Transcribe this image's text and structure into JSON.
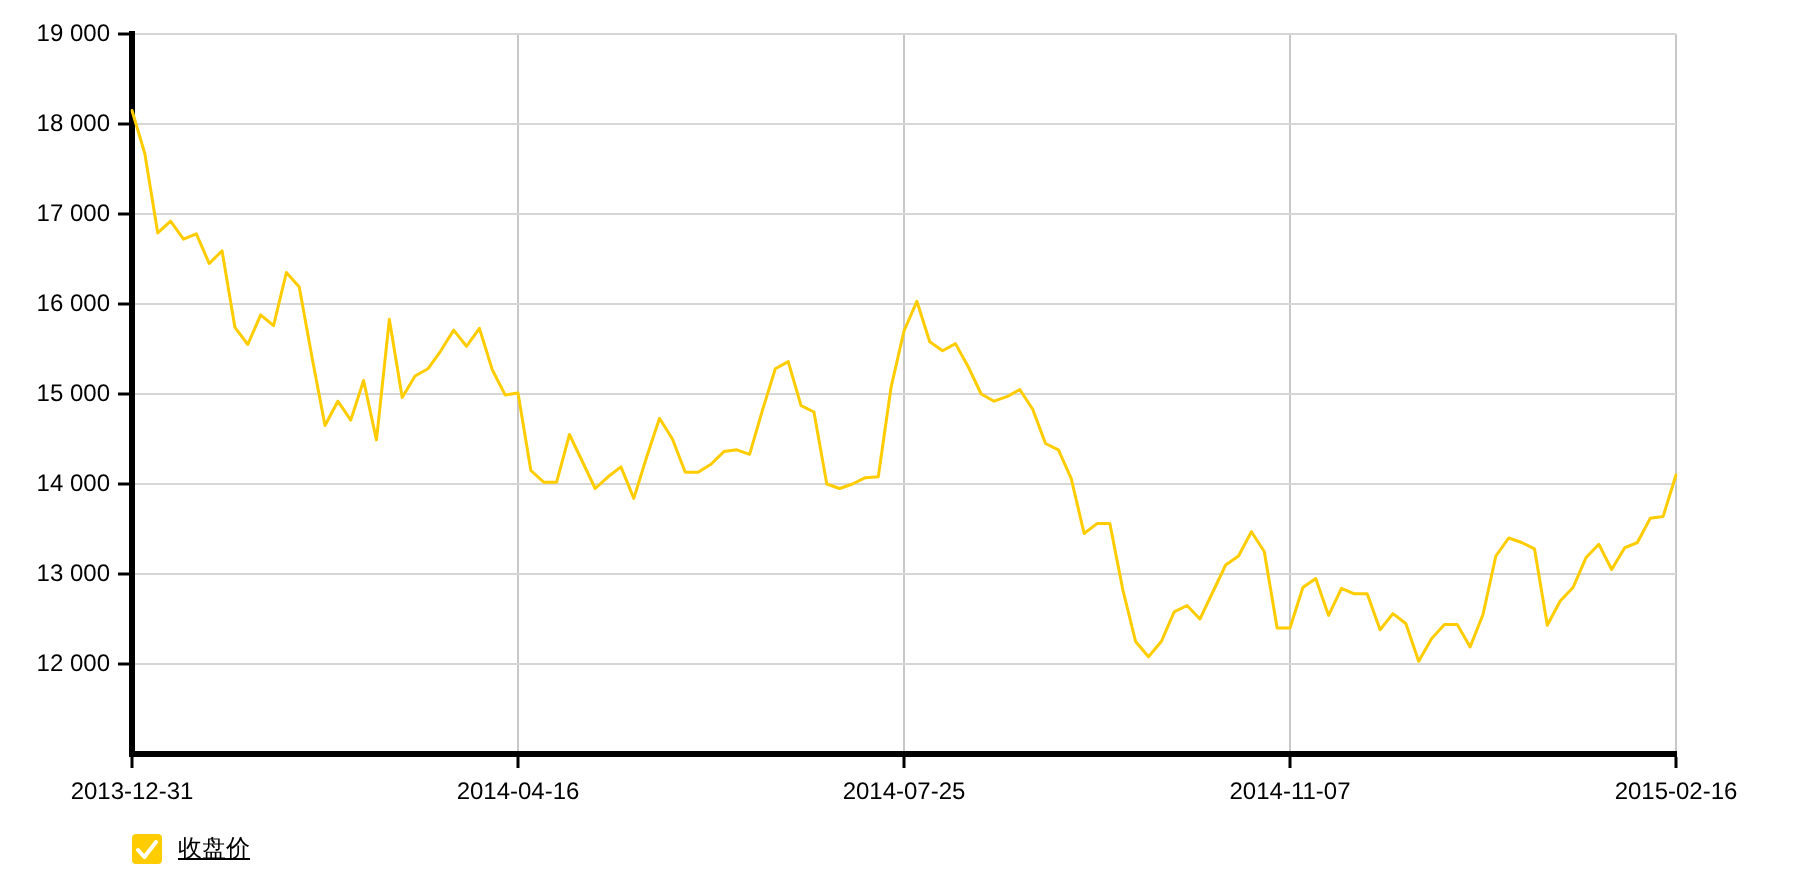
{
  "chart_data": {
    "type": "line",
    "categories": [
      "2013-12-31",
      null,
      null,
      null,
      null,
      null,
      null,
      null,
      null,
      null,
      null,
      null,
      null,
      null,
      null,
      null,
      null,
      null,
      null,
      null,
      null,
      null,
      null,
      null,
      null,
      null,
      null,
      null,
      null,
      null,
      "2014-04-16",
      null,
      null,
      null,
      null,
      null,
      null,
      null,
      null,
      null,
      null,
      null,
      null,
      null,
      null,
      null,
      null,
      null,
      null,
      null,
      null,
      null,
      null,
      null,
      null,
      null,
      null,
      null,
      null,
      null,
      "2014-07-25",
      null,
      null,
      null,
      null,
      null,
      null,
      null,
      null,
      null,
      null,
      null,
      null,
      null,
      null,
      null,
      null,
      null,
      null,
      null,
      null,
      null,
      null,
      null,
      null,
      null,
      null,
      null,
      null,
      null,
      "2014-11-07",
      null,
      null,
      null,
      null,
      null,
      null,
      null,
      null,
      null,
      null,
      null,
      null,
      null,
      null,
      null,
      null,
      null,
      null,
      null,
      null,
      null,
      null,
      null,
      null,
      null,
      null,
      null,
      null,
      null,
      "2015-02-16"
    ],
    "series": [
      {
        "name": "收盘价",
        "color": "#ffcc00",
        "values": [
          18150,
          17670,
          16790,
          16920,
          16720,
          16780,
          16450,
          16590,
          15740,
          15550,
          15880,
          15760,
          16350,
          16190,
          15400,
          14650,
          14920,
          14710,
          15150,
          14490,
          15830,
          14960,
          15200,
          15280,
          15480,
          15710,
          15530,
          15730,
          15270,
          14990,
          15010,
          14150,
          14020,
          14020,
          14550,
          14250,
          13950,
          14080,
          14190,
          13840,
          14300,
          14730,
          14500,
          14130,
          14130,
          14220,
          14360,
          14380,
          14330,
          14820,
          15280,
          15360,
          14870,
          14800,
          14000,
          13950,
          14000,
          14070,
          14080,
          15080,
          15700,
          16030,
          15580,
          15480,
          15560,
          15300,
          15000,
          14920,
          14970,
          15050,
          14830,
          14450,
          14380,
          14060,
          13450,
          13560,
          13560,
          12830,
          12250,
          12080,
          12250,
          12580,
          12650,
          12500,
          12800,
          13100,
          13200,
          13470,
          13250,
          12400,
          12400,
          12850,
          12950,
          12540,
          12840,
          12780,
          12780,
          12380,
          12560,
          12450,
          12030,
          12280,
          12440,
          12440,
          12190,
          12550,
          13200,
          13400,
          13350,
          13280,
          12430,
          12700,
          12850,
          13180,
          13330,
          13050,
          13290,
          13350,
          13620,
          13640,
          14100
        ]
      }
    ],
    "ylim": [
      11000,
      19000
    ],
    "yticks": [
      {
        "value": 12000,
        "label": "12 000"
      },
      {
        "value": 13000,
        "label": "13 000"
      },
      {
        "value": 14000,
        "label": "14 000"
      },
      {
        "value": 15000,
        "label": "15 000"
      },
      {
        "value": 16000,
        "label": "16 000"
      },
      {
        "value": 17000,
        "label": "17 000"
      },
      {
        "value": 18000,
        "label": "18 000"
      },
      {
        "value": 19000,
        "label": "19 000"
      }
    ],
    "grid": true,
    "legend": "bottom left"
  }
}
